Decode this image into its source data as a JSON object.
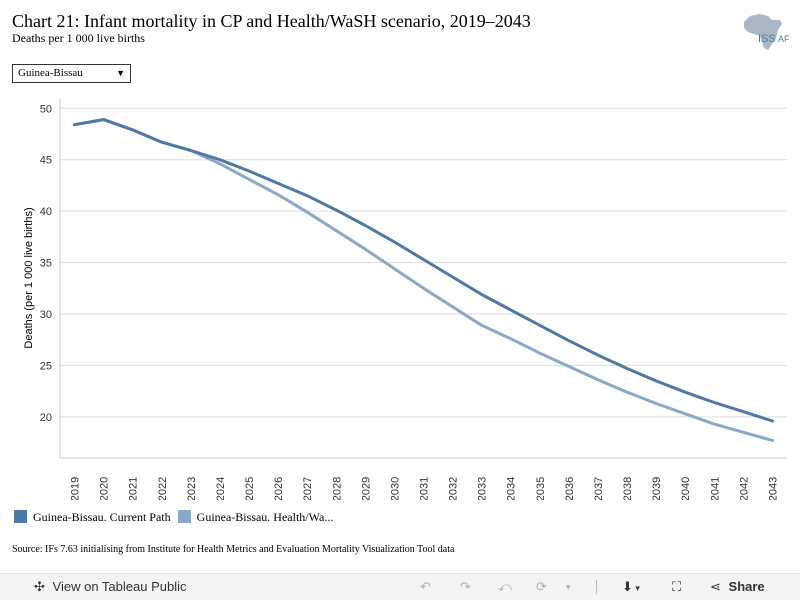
{
  "header": {
    "title": "Chart 21: Infant mortality in CP and Health/WaSH scenario, 2019–2043",
    "subtitle": "Deaths per 1 000 live births",
    "logo_text": "ISS",
    "logo_text_cut": "AF"
  },
  "filter": {
    "selected": "Guinea-Bissau",
    "arrow": "▼"
  },
  "chart_data": {
    "type": "line",
    "ylabel": "Deaths (per 1 000 live births)",
    "xlabel": "",
    "ylim": [
      16,
      51
    ],
    "yticks": [
      20,
      25,
      30,
      35,
      40,
      45,
      50
    ],
    "grid": true,
    "legend_position": "bottom-left",
    "x": [
      2019,
      2020,
      2021,
      2022,
      2023,
      2024,
      2025,
      2026,
      2027,
      2028,
      2029,
      2030,
      2031,
      2032,
      2033,
      2034,
      2035,
      2036,
      2037,
      2038,
      2039,
      2040,
      2041,
      2042,
      2043
    ],
    "series": [
      {
        "name": "Guinea-Bissau. Current Path",
        "legend_label": "Guinea-Bissau. Current Path",
        "color": "#4e79a7",
        "values": [
          48.4,
          48.9,
          47.9,
          46.7,
          45.9,
          45.0,
          43.9,
          42.7,
          41.5,
          40.1,
          38.6,
          37.0,
          35.3,
          33.6,
          31.9,
          30.4,
          28.9,
          27.4,
          26.0,
          24.7,
          23.5,
          22.4,
          21.4,
          20.5,
          19.6
        ]
      },
      {
        "name": "Guinea-Bissau. Health/WaSH",
        "legend_label": "Guinea-Bissau. Health/Wa...",
        "color": "#88a9c9",
        "values": [
          48.4,
          48.9,
          47.9,
          46.7,
          45.9,
          44.6,
          43.1,
          41.6,
          39.9,
          38.1,
          36.3,
          34.4,
          32.5,
          30.7,
          28.9,
          27.6,
          26.2,
          24.9,
          23.6,
          22.4,
          21.3,
          20.3,
          19.3,
          18.5,
          17.7
        ]
      }
    ]
  },
  "source": "Source: IFs 7.63 initialising from Institute for Health Metrics and Evaluation Mortality Visualization Tool data",
  "toolbar": {
    "view_label": "View on Tableau Public",
    "share_label": "Share"
  }
}
